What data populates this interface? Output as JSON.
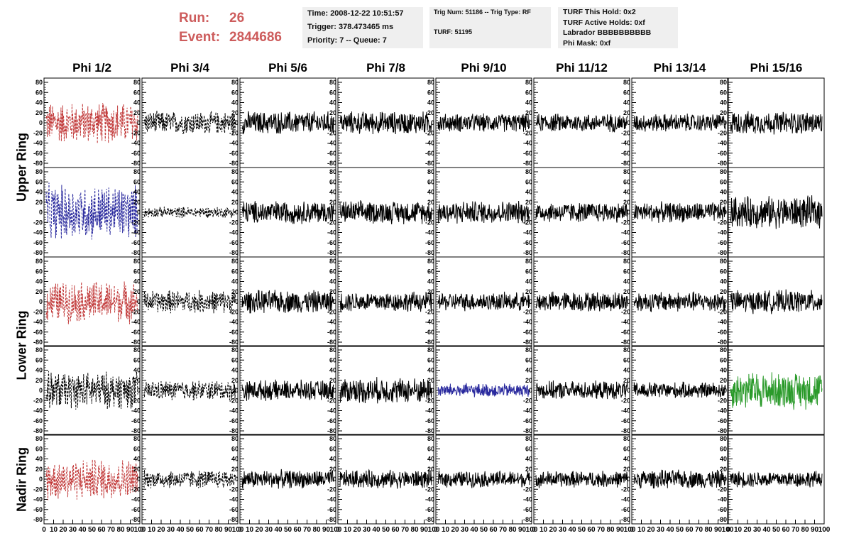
{
  "run_label": "Run:",
  "run_value": "26",
  "event_label": "Event:",
  "event_value": "2844686",
  "time_line": "Time: 2008-12-22 10:51:57",
  "trigger_line": "Trigger: 378.473465 ms",
  "priority_line": "Priority: 7 -- Queue: 7",
  "trig_num_line": "Trig Num: 51186 -- Trig Type: RF",
  "turf_line": "TURF: 51195",
  "turf_this_hold": "TURF This Hold: 0x2",
  "turf_active_holds": "TURF Active Holds: 0xf",
  "labrador": "Labrador BBBBBBBBBB",
  "phi_mask": "Phi Mask: 0xf",
  "colors": {
    "red": "#c23b3b",
    "blue": "#2a2a9e",
    "green": "#2a9a2a",
    "black": "#000000",
    "header_red": "#cd5c5c"
  },
  "chart_data": {
    "type": "line",
    "columns": [
      "Phi 1/2",
      "Phi 3/4",
      "Phi 5/6",
      "Phi 7/8",
      "Phi 9/10",
      "Phi 11/12",
      "Phi 13/14",
      "Phi 15/16"
    ],
    "ring_labels": [
      "Upper Ring",
      "Lower Ring",
      "Nadir Ring"
    ],
    "rows": 5,
    "ylim": [
      -80,
      80
    ],
    "y_ticks": [
      -80,
      -60,
      -40,
      -20,
      0,
      20,
      40,
      60,
      80
    ],
    "xlim": [
      0,
      100
    ],
    "x_ticks": [
      "0",
      "10",
      "20",
      "30",
      "40",
      "50",
      "60",
      "70",
      "80",
      "90",
      "100"
    ],
    "grid": false,
    "panel_styles": [
      [
        {
          "color": "red",
          "dash": true,
          "amp": 45
        },
        {
          "color": "black",
          "dash": true,
          "amp": 25
        },
        {
          "color": "black",
          "dash": false,
          "amp": 25
        },
        {
          "color": "black",
          "dash": false,
          "amp": 25
        },
        {
          "color": "black",
          "dash": false,
          "amp": 20
        },
        {
          "color": "black",
          "dash": false,
          "amp": 20
        },
        {
          "color": "black",
          "dash": false,
          "amp": 20
        },
        {
          "color": "black",
          "dash": false,
          "amp": 25
        }
      ],
      [
        {
          "color": "blue",
          "dash": true,
          "amp": 60
        },
        {
          "color": "black",
          "dash": true,
          "amp": 12
        },
        {
          "color": "black",
          "dash": false,
          "amp": 25
        },
        {
          "color": "black",
          "dash": false,
          "amp": 25
        },
        {
          "color": "black",
          "dash": false,
          "amp": 25
        },
        {
          "color": "black",
          "dash": false,
          "amp": 22
        },
        {
          "color": "black",
          "dash": false,
          "amp": 22
        },
        {
          "color": "black",
          "dash": false,
          "amp": 35
        }
      ],
      [
        {
          "color": "red",
          "dash": true,
          "amp": 45
        },
        {
          "color": "black",
          "dash": true,
          "amp": 25
        },
        {
          "color": "black",
          "dash": false,
          "amp": 25
        },
        {
          "color": "black",
          "dash": false,
          "amp": 22
        },
        {
          "color": "black",
          "dash": false,
          "amp": 20
        },
        {
          "color": "black",
          "dash": false,
          "amp": 22
        },
        {
          "color": "black",
          "dash": false,
          "amp": 22
        },
        {
          "color": "black",
          "dash": false,
          "amp": 25
        }
      ],
      [
        {
          "color": "black",
          "dash": true,
          "amp": 40
        },
        {
          "color": "black",
          "dash": true,
          "amp": 22
        },
        {
          "color": "black",
          "dash": false,
          "amp": 22
        },
        {
          "color": "black",
          "dash": false,
          "amp": 28
        },
        {
          "color": "blue",
          "dash": false,
          "amp": 15
        },
        {
          "color": "black",
          "dash": false,
          "amp": 20
        },
        {
          "color": "black",
          "dash": false,
          "amp": 18
        },
        {
          "color": "green",
          "dash": false,
          "amp": 40
        }
      ],
      [
        {
          "color": "red",
          "dash": true,
          "amp": 45
        },
        {
          "color": "black",
          "dash": true,
          "amp": 20
        },
        {
          "color": "black",
          "dash": false,
          "amp": 20
        },
        {
          "color": "black",
          "dash": false,
          "amp": 20
        },
        {
          "color": "black",
          "dash": false,
          "amp": 18
        },
        {
          "color": "black",
          "dash": false,
          "amp": 18
        },
        {
          "color": "black",
          "dash": false,
          "amp": 20
        },
        {
          "color": "black",
          "dash": false,
          "amp": 18
        }
      ]
    ]
  }
}
